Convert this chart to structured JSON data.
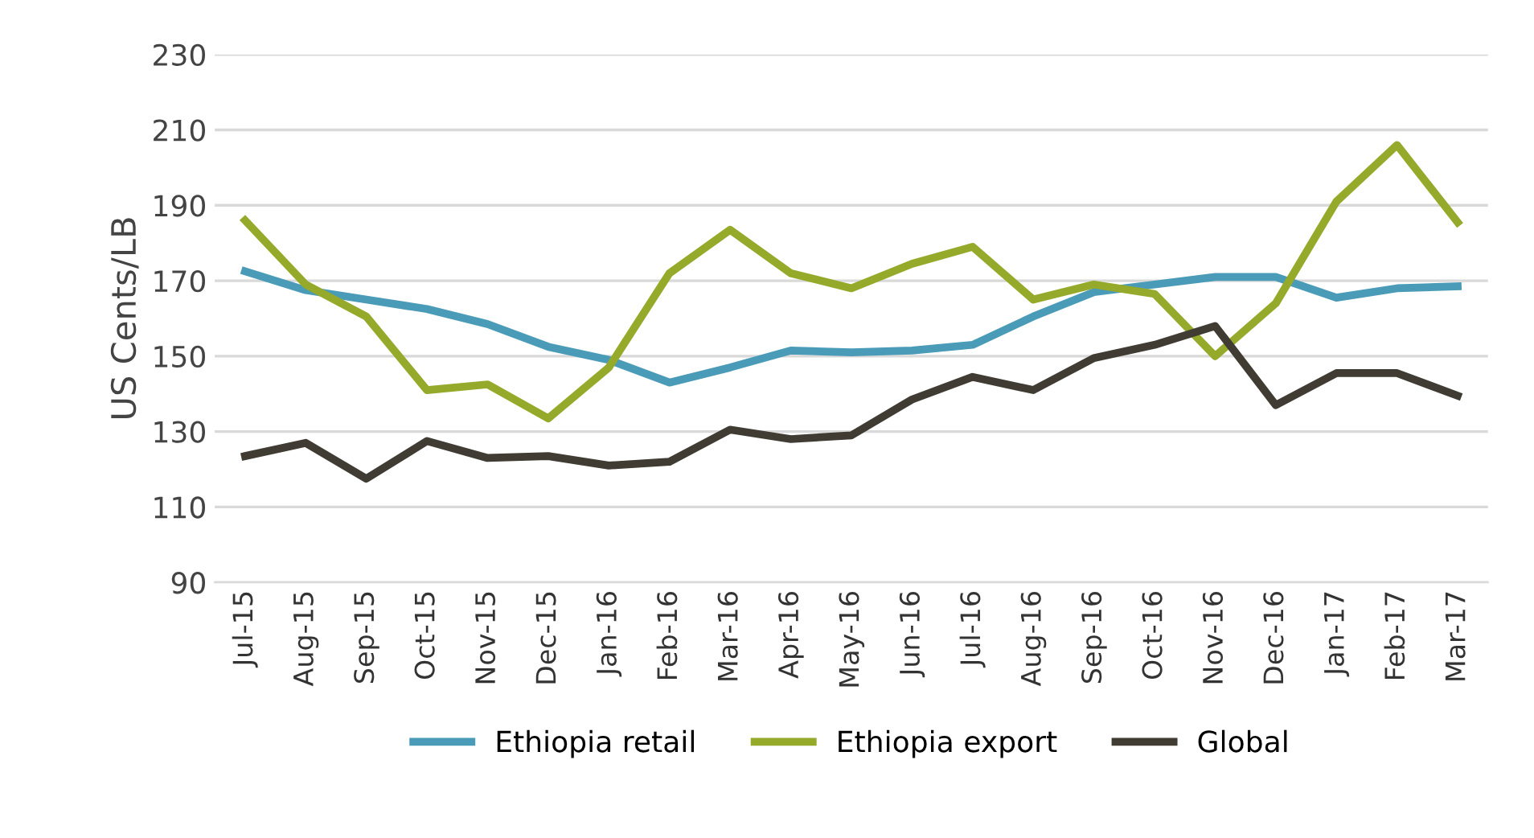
{
  "chart_data": {
    "type": "line",
    "ylabel": "US Cents/LB",
    "categories": [
      "Jul-15",
      "Aug-15",
      "Sep-15",
      "Oct-15",
      "Nov-15",
      "Dec-15",
      "Jan-16",
      "Feb-16",
      "Mar-16",
      "Apr-16",
      "May-16",
      "Jun-16",
      "Jul-16",
      "Aug-16",
      "Sep-16",
      "Oct-16",
      "Nov-16",
      "Dec-16",
      "Jan-17",
      "Feb-17",
      "Mar-17"
    ],
    "series": [
      {
        "name": "Ethiopia retail",
        "color": "#4a9bb8",
        "values": [
          172.5,
          167.5,
          165,
          162.5,
          158.5,
          152.5,
          149,
          143,
          147,
          151.5,
          151,
          151.5,
          153,
          160.5,
          167,
          169,
          171,
          171,
          165.5,
          168,
          168.5
        ]
      },
      {
        "name": "Ethiopia export",
        "color": "#95aa2a",
        "values": [
          186,
          169,
          160.5,
          141,
          142.5,
          133.5,
          147,
          172,
          183.5,
          172,
          168,
          174.5,
          179,
          165,
          169,
          166.5,
          150,
          164,
          191,
          206,
          185.5
        ]
      },
      {
        "name": "Global",
        "color": "#403c33",
        "values": [
          123.5,
          127,
          117.5,
          127.5,
          123,
          123.5,
          121,
          122,
          130.5,
          128,
          129,
          138.5,
          144.5,
          141,
          149.5,
          153,
          158,
          137,
          145.5,
          145.5,
          139.5
        ]
      }
    ],
    "ylim": [
      90,
      230
    ],
    "yticks": [
      90,
      110,
      130,
      150,
      170,
      190,
      210,
      230
    ],
    "grid": "y",
    "legend": "bottom",
    "marker": "none",
    "line_style": "solid"
  }
}
